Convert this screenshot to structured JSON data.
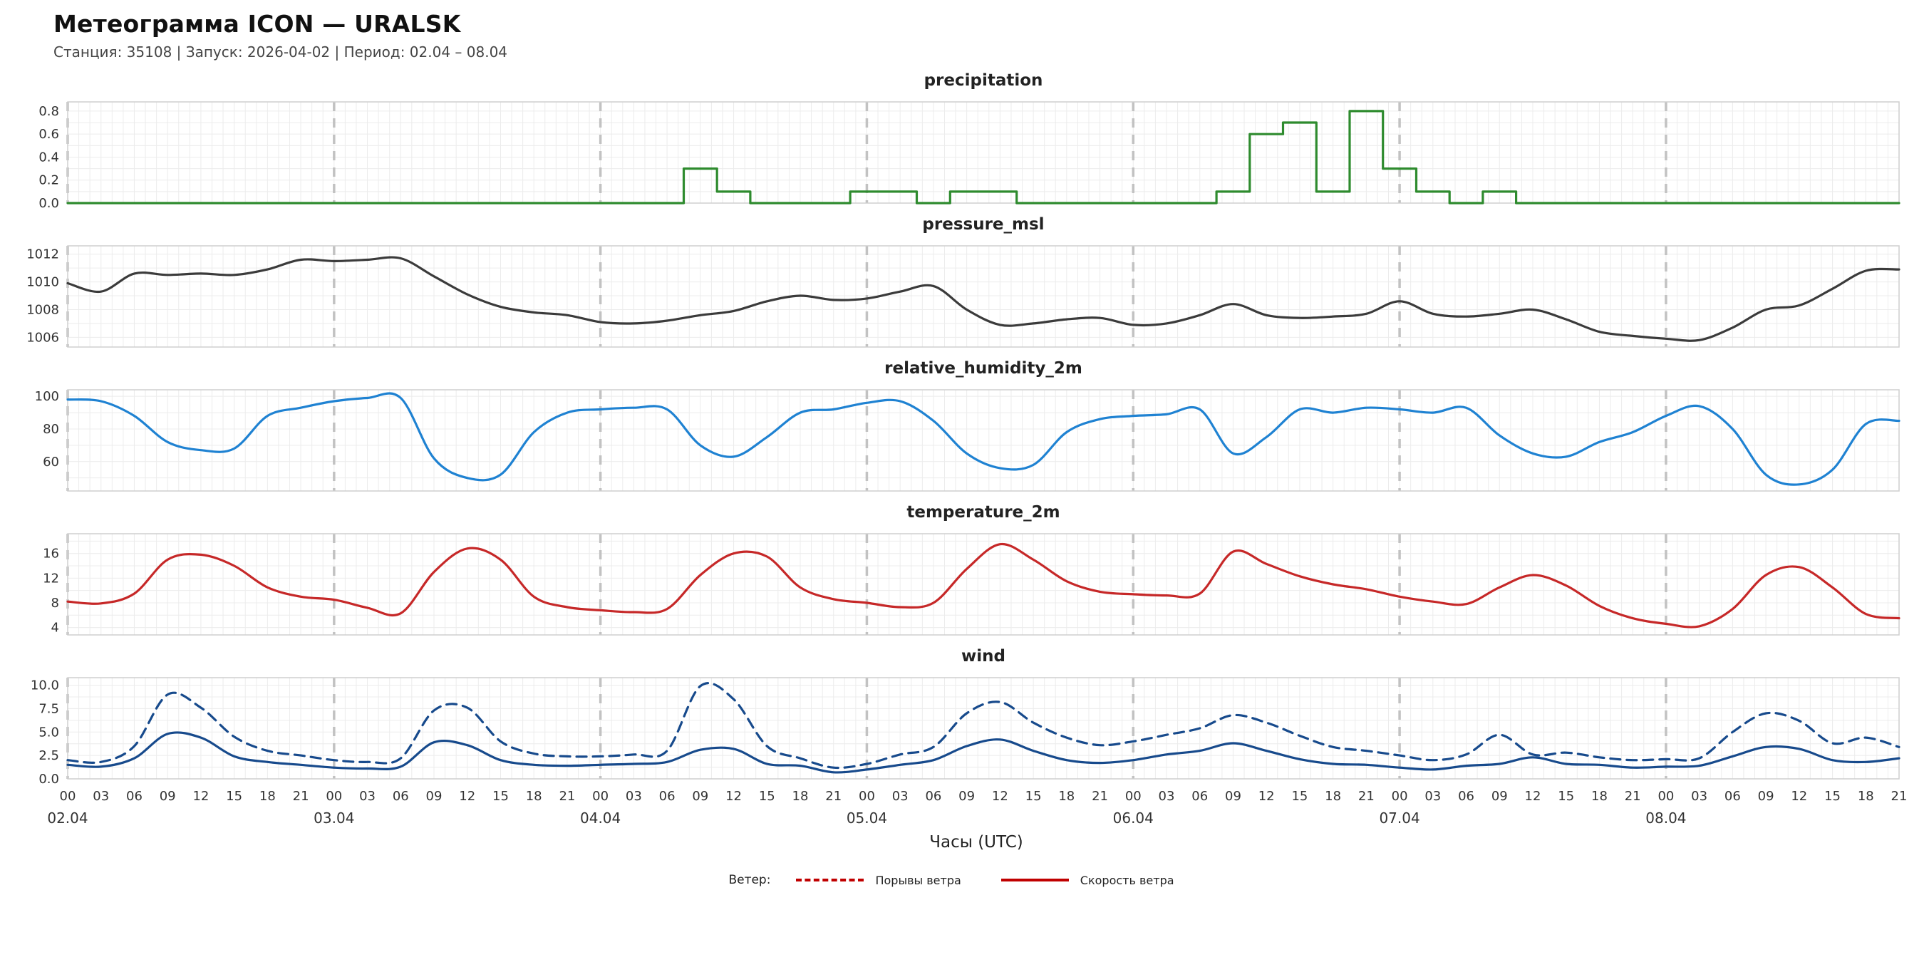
{
  "header": {
    "title": "Метеограмма ICON — URALSK",
    "subtitle": "Станция: 35108  | Запуск: 2026-04-02  | Период: 02.04 – 08.04"
  },
  "xaxis": {
    "label": "Часы (UTC)",
    "start_hour": 0,
    "end_hour": 165,
    "step_hours": 3,
    "tick_hours": 3,
    "hour_labels": [
      "00",
      "03",
      "06",
      "09",
      "12",
      "15",
      "18",
      "21"
    ],
    "day_labels": [
      "02.04",
      "03.04",
      "04.04",
      "05.04",
      "06.04",
      "07.04",
      "08.04"
    ]
  },
  "legend": {
    "prefix": "Ветер:",
    "items": [
      {
        "label": "Порывы ветра",
        "style": "dashed",
        "color": "#c00000"
      },
      {
        "label": "Скорость ветра",
        "style": "solid",
        "color": "#c00000"
      }
    ]
  },
  "chart_data": [
    {
      "type": "line",
      "title": "precipitation",
      "color": "#2e8b2e",
      "step": true,
      "ylim": [
        0,
        0.88
      ],
      "grid_y_step": 0.1,
      "yticks": [
        {
          "v": 0.0,
          "label": "0.0"
        },
        {
          "v": 0.2,
          "label": "0.2"
        },
        {
          "v": 0.4,
          "label": "0.4"
        },
        {
          "v": 0.6,
          "label": "0.6"
        },
        {
          "v": 0.8,
          "label": "0.8"
        }
      ],
      "values": [
        0,
        0,
        0,
        0,
        0,
        0,
        0,
        0,
        0,
        0,
        0,
        0,
        0,
        0,
        0,
        0,
        0,
        0,
        0,
        0.3,
        0.1,
        0,
        0,
        0,
        0.1,
        0.1,
        0,
        0.1,
        0.1,
        0,
        0,
        0,
        0,
        0,
        0,
        0.1,
        0.6,
        0.7,
        0.1,
        0.8,
        0.3,
        0.1,
        0,
        0.1,
        0,
        0,
        0,
        0,
        0,
        0,
        0,
        0,
        0,
        0,
        0,
        0
      ]
    },
    {
      "type": "line",
      "title": "pressure_msl",
      "color": "#3b3b3b",
      "step": false,
      "ylim": [
        1005.3,
        1012.6
      ],
      "grid_y_step": 1,
      "yticks": [
        {
          "v": 1006,
          "label": "1006"
        },
        {
          "v": 1008,
          "label": "1008"
        },
        {
          "v": 1010,
          "label": "1010"
        },
        {
          "v": 1012,
          "label": "1012"
        }
      ],
      "values": [
        1009.9,
        1009.3,
        1010.6,
        1010.5,
        1010.6,
        1010.5,
        1010.9,
        1011.6,
        1011.5,
        1011.6,
        1011.7,
        1010.4,
        1009.1,
        1008.2,
        1007.8,
        1007.6,
        1007.1,
        1007.0,
        1007.2,
        1007.6,
        1007.9,
        1008.6,
        1009.0,
        1008.7,
        1008.8,
        1009.3,
        1009.7,
        1008.0,
        1006.9,
        1007.0,
        1007.3,
        1007.4,
        1006.9,
        1007.0,
        1007.6,
        1008.4,
        1007.6,
        1007.4,
        1007.5,
        1007.7,
        1008.6,
        1007.7,
        1007.5,
        1007.7,
        1008.0,
        1007.3,
        1006.4,
        1006.1,
        1005.9,
        1005.8,
        1006.7,
        1008.0,
        1008.3,
        1009.5,
        1010.8,
        1010.9
      ]
    },
    {
      "type": "line",
      "title": "relative_humidity_2m",
      "color": "#1f82d2",
      "step": false,
      "ylim": [
        42,
        104
      ],
      "grid_y_step": 10,
      "yticks": [
        {
          "v": 60,
          "label": "60"
        },
        {
          "v": 80,
          "label": "80"
        },
        {
          "v": 100,
          "label": "100"
        }
      ],
      "values": [
        98,
        97,
        88,
        72,
        67,
        68,
        88,
        93,
        97,
        99,
        99,
        62,
        50,
        52,
        78,
        90,
        92,
        93,
        92,
        70,
        63,
        75,
        90,
        92,
        96,
        97,
        85,
        65,
        56,
        58,
        78,
        86,
        88,
        89,
        92,
        65,
        75,
        92,
        90,
        93,
        92,
        90,
        93,
        76,
        65,
        63,
        72,
        78,
        88,
        94,
        80,
        52,
        46,
        55,
        83,
        85
      ]
    },
    {
      "type": "line",
      "title": "temperature_2m",
      "color": "#c62828",
      "step": false,
      "ylim": [
        2.8,
        19.2
      ],
      "grid_y_step": 2,
      "yticks": [
        {
          "v": 4,
          "label": "4"
        },
        {
          "v": 8,
          "label": "8"
        },
        {
          "v": 12,
          "label": "12"
        },
        {
          "v": 16,
          "label": "16"
        }
      ],
      "values": [
        8.2,
        7.9,
        9.5,
        15.0,
        15.8,
        14.0,
        10.5,
        9.0,
        8.5,
        7.2,
        6.3,
        13.0,
        16.8,
        15.0,
        9.0,
        7.3,
        6.8,
        6.5,
        7.0,
        12.5,
        16.0,
        15.5,
        10.5,
        8.6,
        8.0,
        7.3,
        8.0,
        13.5,
        17.5,
        15.0,
        11.5,
        9.8,
        9.4,
        9.2,
        9.5,
        16.3,
        14.3,
        12.3,
        11.0,
        10.2,
        9.0,
        8.2,
        7.8,
        10.5,
        12.5,
        10.8,
        7.5,
        5.5,
        4.6,
        4.2,
        7.0,
        12.5,
        13.8,
        10.5,
        6.2,
        5.5
      ]
    },
    {
      "type": "line",
      "title": "wind",
      "color": "#174a8c",
      "step": false,
      "show_x_labels": true,
      "ylim": [
        0,
        10.8
      ],
      "grid_y_step": 1.25,
      "yticks": [
        {
          "v": 0.0,
          "label": "0.0"
        },
        {
          "v": 2.5,
          "label": "2.5"
        },
        {
          "v": 5.0,
          "label": "5.0"
        },
        {
          "v": 7.5,
          "label": "7.5"
        },
        {
          "v": 10.0,
          "label": "10.0"
        }
      ],
      "series": [
        {
          "name": "Порывы ветра",
          "dashed": true,
          "color": "#174a8c",
          "values": [
            2.0,
            1.8,
            3.5,
            9.0,
            7.6,
            4.5,
            3.0,
            2.5,
            2.0,
            1.8,
            2.2,
            7.3,
            7.6,
            4.0,
            2.7,
            2.4,
            2.4,
            2.6,
            3.0,
            9.9,
            8.5,
            3.5,
            2.2,
            1.2,
            1.6,
            2.6,
            3.4,
            7.0,
            8.2,
            6.0,
            4.4,
            3.6,
            4.0,
            4.7,
            5.4,
            6.8,
            6.0,
            4.6,
            3.4,
            3.0,
            2.5,
            2.0,
            2.6,
            4.7,
            2.6,
            2.8,
            2.3,
            2.0,
            2.1,
            2.2,
            5.0,
            7.0,
            6.2,
            3.8,
            4.4,
            3.4
          ]
        },
        {
          "name": "Скорость ветра",
          "dashed": false,
          "color": "#174a8c",
          "values": [
            1.5,
            1.3,
            2.2,
            4.8,
            4.4,
            2.4,
            1.8,
            1.5,
            1.2,
            1.1,
            1.3,
            3.9,
            3.6,
            2.0,
            1.5,
            1.4,
            1.5,
            1.6,
            1.8,
            3.1,
            3.2,
            1.6,
            1.4,
            0.7,
            1.0,
            1.5,
            2.0,
            3.5,
            4.2,
            3.0,
            2.0,
            1.7,
            2.0,
            2.6,
            3.0,
            3.8,
            3.0,
            2.1,
            1.6,
            1.5,
            1.2,
            1.0,
            1.4,
            1.6,
            2.3,
            1.6,
            1.5,
            1.2,
            1.3,
            1.4,
            2.4,
            3.4,
            3.2,
            2.0,
            1.8,
            2.2
          ]
        }
      ]
    }
  ]
}
